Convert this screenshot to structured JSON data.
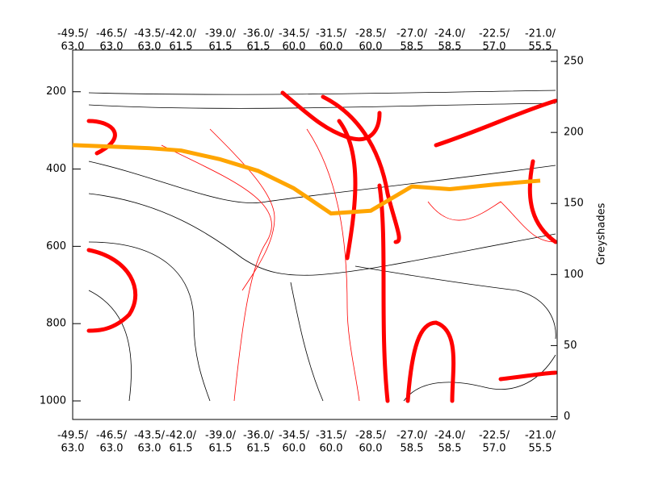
{
  "chart_data": {
    "type": "line",
    "x_labels": [
      {
        "top": "-49.5/",
        "bottom": "63.0"
      },
      {
        "top": "-46.5/",
        "bottom": "63.0"
      },
      {
        "top": "-43.5/",
        "bottom": "63.0"
      },
      {
        "top": "-42.0/",
        "bottom": "61.5"
      },
      {
        "top": "-39.0/",
        "bottom": "61.5"
      },
      {
        "top": "-36.0/",
        "bottom": "61.5"
      },
      {
        "top": "-34.5/",
        "bottom": "60.0"
      },
      {
        "top": "-31.5/",
        "bottom": "60.0"
      },
      {
        "top": "-28.5/",
        "bottom": "60.0"
      },
      {
        "top": "-27.0/",
        "bottom": "58.5"
      },
      {
        "top": "-24.0/",
        "bottom": "58.5"
      },
      {
        "top": "-22.5/",
        "bottom": "57.0"
      },
      {
        "top": "-21.0/",
        "bottom": "55.5"
      }
    ],
    "series": [
      {
        "color": "#ffa500",
        "values": [
          338,
          342,
          346,
          352,
          375,
          405,
          450,
          515,
          508,
          445,
          452,
          440,
          430
        ]
      }
    ],
    "ylim": [
      1048,
      92
    ],
    "yticks": [
      200,
      400,
      600,
      800,
      1000
    ],
    "y2label": "Greyshades",
    "y2lim": [
      -2,
      258
    ],
    "y2ticks": [
      0,
      50,
      100,
      150,
      200,
      250
    ]
  }
}
